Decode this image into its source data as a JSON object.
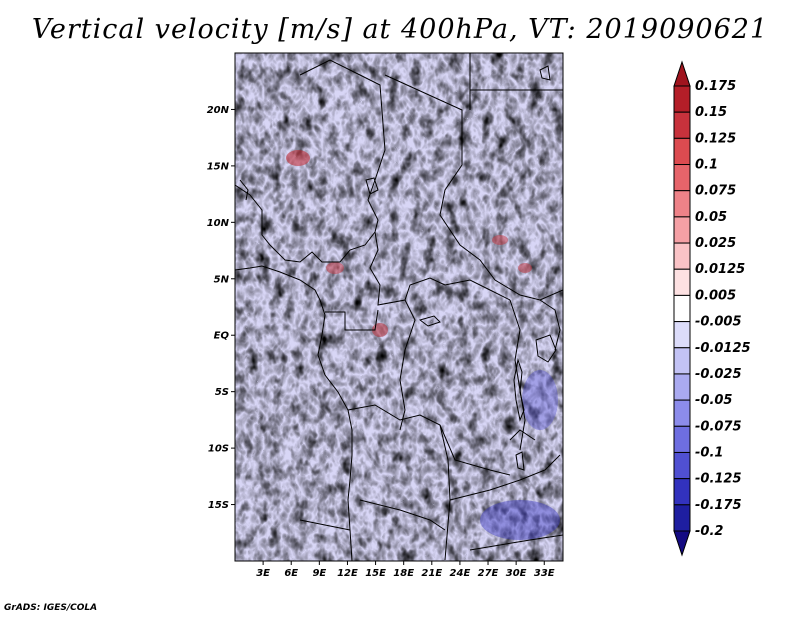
{
  "title": "Vertical velocity [m/s] at 400hPa, VT: 2019090621",
  "credit": "GrADS: IGES/COLA",
  "map": {
    "lon_range": [
      0,
      35
    ],
    "lat_range": [
      -20,
      25
    ],
    "lat_ticks": [
      "20N",
      "15N",
      "10N",
      "5N",
      "EQ",
      "5S",
      "10S",
      "15S"
    ],
    "lat_values": [
      20,
      15,
      10,
      5,
      0,
      -5,
      -10,
      -15
    ],
    "lon_ticks": [
      "3E",
      "6E",
      "9E",
      "12E",
      "15E",
      "18E",
      "21E",
      "24E",
      "27E",
      "30E",
      "33E"
    ],
    "lon_values": [
      3,
      6,
      9,
      12,
      15,
      18,
      21,
      24,
      27,
      30,
      33
    ]
  },
  "colorbar": {
    "labels": [
      "0.175",
      "0.15",
      "0.125",
      "0.1",
      "0.075",
      "0.05",
      "0.025",
      "0.0125",
      "0.005",
      "-0.005",
      "-0.0125",
      "-0.025",
      "-0.05",
      "-0.075",
      "-0.1",
      "-0.125",
      "-0.175",
      "-0.2"
    ],
    "colors": [
      "#a0141e",
      "#b41e28",
      "#c8323c",
      "#dc4b50",
      "#e6646a",
      "#ee8288",
      "#f5a0a5",
      "#fac3c6",
      "#fde1e2",
      "#ffffff",
      "#dcdcfa",
      "#c3c3f5",
      "#aaaaf0",
      "#8c8ceb",
      "#6e6ee1",
      "#5050d2",
      "#3232be",
      "#1e1ea0",
      "#140a82"
    ]
  }
}
